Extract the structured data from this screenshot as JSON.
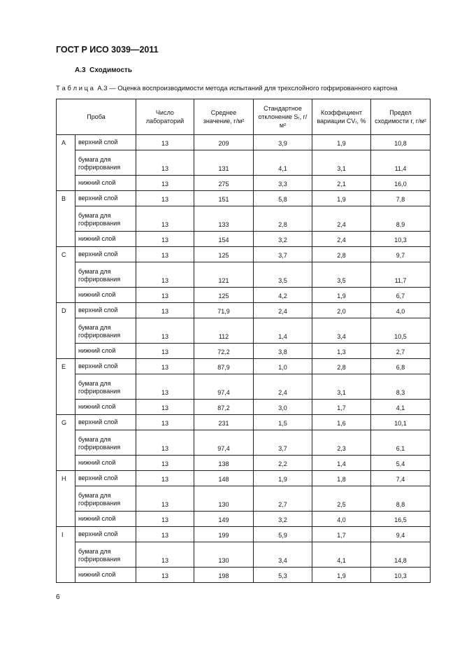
{
  "header": {
    "title": "ГОСТ Р ИСО 3039—2011"
  },
  "section": "А.3  Сходимость",
  "caption": "Т а б л и ц а  А.3 — Оценка воспроизводимости метода испытаний для трехслойного гофрированного картона",
  "table": {
    "header": [
      "Проба",
      "Число лабораторий",
      "Среднее значение, г/м²",
      "Стандартное отклонение Sᵣ, г/м²",
      "Коэффициент вариации CVᵣ, %",
      "Предел сходимости r, г/м²"
    ],
    "groups": [
      {
        "label": "A",
        "rows": [
          [
            "верхний слой",
            "13",
            "209",
            "3,9",
            "1,9",
            "10,8"
          ],
          [
            "бумага для гофрирования",
            "13",
            "131",
            "4,1",
            "3,1",
            "11,4"
          ],
          [
            "нижний слой",
            "13",
            "275",
            "3,3",
            "2,1",
            "16,0"
          ]
        ]
      },
      {
        "label": "B",
        "rows": [
          [
            "верхний слой",
            "13",
            "151",
            "5,8",
            "1,9",
            "7,8"
          ],
          [
            "бумага для гофрирования",
            "13",
            "133",
            "2,8",
            "2,4",
            "8,9"
          ],
          [
            "нижний слой",
            "13",
            "154",
            "3,2",
            "2,4",
            "10,3"
          ]
        ]
      },
      {
        "label": "C",
        "rows": [
          [
            "верхний слой",
            "13",
            "125",
            "3,7",
            "2,8",
            "9,7"
          ],
          [
            "бумага для гофрирования",
            "13",
            "121",
            "3,5",
            "3,5",
            "11,7"
          ],
          [
            "нижний слой",
            "13",
            "125",
            "4,2",
            "1,9",
            "6,7"
          ]
        ]
      },
      {
        "label": "D",
        "rows": [
          [
            "верхний слой",
            "13",
            "71,9",
            "2,4",
            "2,0",
            "4,0"
          ],
          [
            "бумага для гофрирования",
            "13",
            "112",
            "1,4",
            "3,4",
            "10,5"
          ],
          [
            "нижний слой",
            "13",
            "72,2",
            "3,8",
            "1,3",
            "2,7"
          ]
        ]
      },
      {
        "label": "E",
        "rows": [
          [
            "верхний слой",
            "13",
            "87,9",
            "1,0",
            "2,8",
            "6,8"
          ],
          [
            "бумага для гофрирования",
            "13",
            "97,4",
            "2,4",
            "3,1",
            "8,3"
          ],
          [
            "нижний слой",
            "13",
            "87,2",
            "3,0",
            "1,7",
            "4,1"
          ]
        ]
      },
      {
        "label": "G",
        "rows": [
          [
            "верхний слой",
            "13",
            "231",
            "1,5",
            "1,6",
            "10,1"
          ],
          [
            "бумага для гофрирования",
            "13",
            "97,4",
            "3,7",
            "2,3",
            "6,1"
          ],
          [
            "нижний слой",
            "13",
            "138",
            "2,2",
            "1,4",
            "5,4"
          ]
        ]
      },
      {
        "label": "H",
        "rows": [
          [
            "верхний слой",
            "13",
            "148",
            "1,9",
            "1,8",
            "7,4"
          ],
          [
            "бумага для гофрирования",
            "13",
            "130",
            "2,7",
            "2,5",
            "8,8"
          ],
          [
            "нижний слой",
            "13",
            "149",
            "3,2",
            "4,0",
            "16,5"
          ]
        ]
      },
      {
        "label": "I",
        "rows": [
          [
            "верхний слой",
            "13",
            "199",
            "5,9",
            "1,7",
            "9,4"
          ],
          [
            "бумага для гофрирования",
            "13",
            "130",
            "3,4",
            "4,1",
            "14,8"
          ],
          [
            "нижний слой",
            "13",
            "198",
            "5,3",
            "1,9",
            "10,3"
          ]
        ]
      }
    ]
  },
  "page_number": "6"
}
